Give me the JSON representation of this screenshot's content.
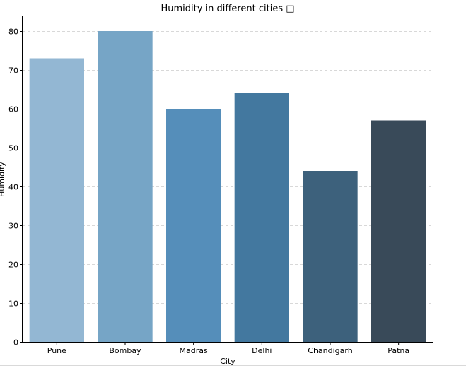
{
  "chart_data": {
    "type": "bar",
    "title": "Humidity in different cities □",
    "xlabel": "City",
    "ylabel": "Humidity",
    "categories": [
      "Pune",
      "Bombay",
      "Madras",
      "Delhi",
      "Chandigarh",
      "Patna"
    ],
    "values": [
      73,
      80,
      60,
      64,
      44,
      57
    ],
    "colors": [
      "#93b7d3",
      "#76a5c6",
      "#558eba",
      "#43789f",
      "#3d617c",
      "#394a59"
    ],
    "ylim": [
      0,
      84
    ],
    "yticks": [
      0,
      10,
      20,
      30,
      40,
      50,
      60,
      70,
      80
    ],
    "grid": "y-dashed",
    "legend": "none"
  }
}
